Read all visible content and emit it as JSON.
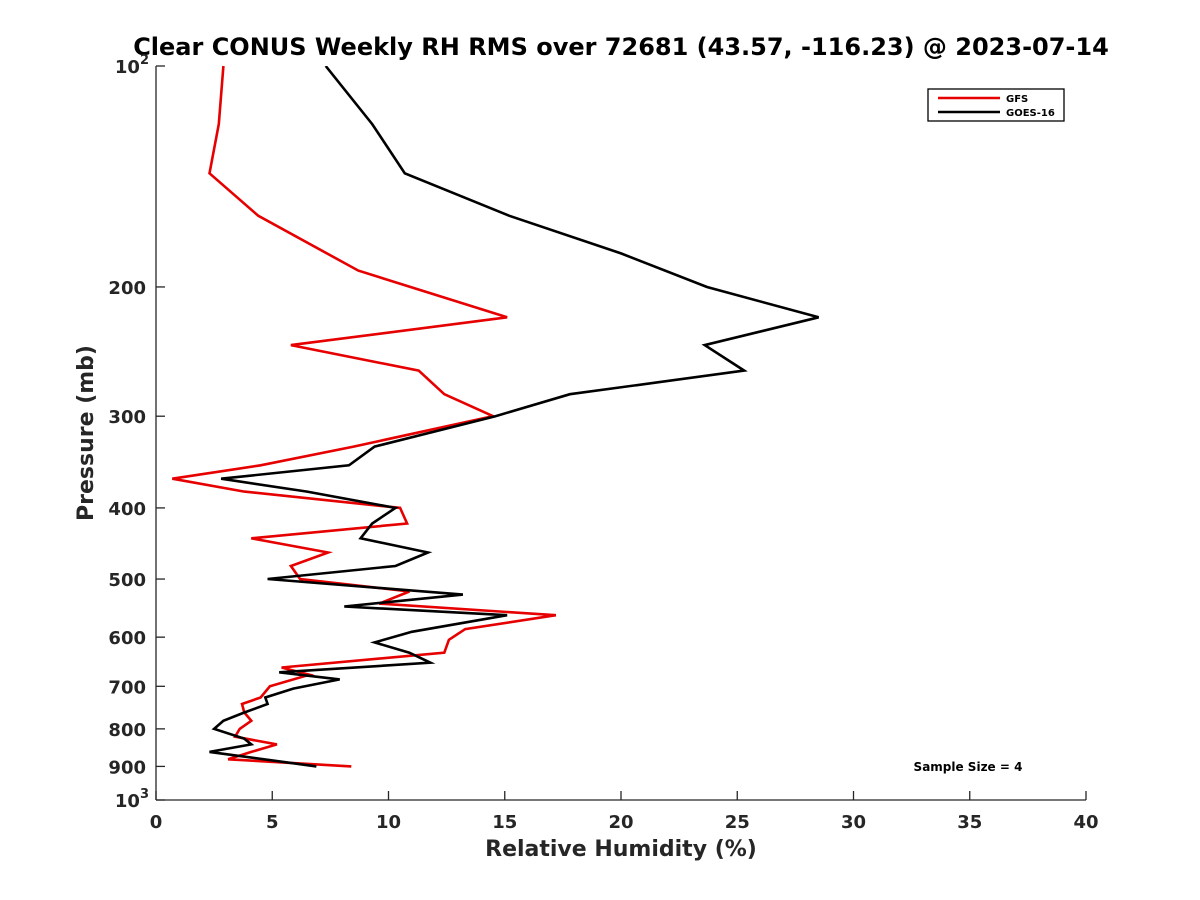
{
  "chart_data": {
    "type": "line",
    "title": "Clear CONUS Weekly RH RMS over 72681 (43.57, -116.23) @ 2023-07-14",
    "xlabel": "Relative Humidity (%)",
    "ylabel": "Pressure (mb)",
    "xlim": [
      0,
      40
    ],
    "ylim": [
      100,
      1000
    ],
    "y_scale": "log",
    "y_reversed": true,
    "grid": false,
    "legend_position": "top-right",
    "x_ticks": [
      "0",
      "5",
      "10",
      "15",
      "20",
      "25",
      "30",
      "35",
      "40"
    ],
    "y_ticks": [
      {
        "value": 100,
        "base": "10",
        "exp": "2"
      },
      {
        "value": 200,
        "label": "200"
      },
      {
        "value": 300,
        "label": "300"
      },
      {
        "value": 400,
        "label": "400"
      },
      {
        "value": 500,
        "label": "500"
      },
      {
        "value": 600,
        "label": "600"
      },
      {
        "value": 700,
        "label": "700"
      },
      {
        "value": 800,
        "label": "800"
      },
      {
        "value": 900,
        "label": "900"
      },
      {
        "value": 1000,
        "base": "10",
        "exp": "3"
      }
    ],
    "series": [
      {
        "name": "GFS",
        "color": "#e60000",
        "points": [
          [
            2.9,
            100
          ],
          [
            2.7,
            120
          ],
          [
            2.3,
            140
          ],
          [
            4.4,
            160
          ],
          [
            8.7,
            190
          ],
          [
            15.1,
            220
          ],
          [
            5.8,
            240
          ],
          [
            11.3,
            260
          ],
          [
            12.4,
            280
          ],
          [
            14.5,
            300
          ],
          [
            8.5,
            330
          ],
          [
            4.5,
            350
          ],
          [
            0.7,
            365
          ],
          [
            3.8,
            380
          ],
          [
            10.5,
            400
          ],
          [
            10.8,
            420
          ],
          [
            4.1,
            440
          ],
          [
            7.4,
            460
          ],
          [
            5.8,
            480
          ],
          [
            6.2,
            500
          ],
          [
            10.9,
            520
          ],
          [
            9.6,
            540
          ],
          [
            17.2,
            560
          ],
          [
            13.3,
            585
          ],
          [
            12.6,
            605
          ],
          [
            12.4,
            630
          ],
          [
            5.4,
            660
          ],
          [
            6.6,
            675
          ],
          [
            4.9,
            700
          ],
          [
            4.5,
            725
          ],
          [
            3.7,
            740
          ],
          [
            3.8,
            760
          ],
          [
            4.1,
            780
          ],
          [
            3.6,
            800
          ],
          [
            3.4,
            820
          ],
          [
            5.2,
            840
          ],
          [
            4.1,
            860
          ],
          [
            3.1,
            880
          ],
          [
            8.4,
            900
          ]
        ]
      },
      {
        "name": "GOES-16",
        "color": "#000000",
        "points": [
          [
            7.3,
            100
          ],
          [
            9.3,
            120
          ],
          [
            10.7,
            140
          ],
          [
            15.2,
            160
          ],
          [
            20.0,
            180
          ],
          [
            23.7,
            200
          ],
          [
            28.5,
            220
          ],
          [
            23.6,
            240
          ],
          [
            25.3,
            260
          ],
          [
            17.8,
            280
          ],
          [
            14.6,
            300
          ],
          [
            9.4,
            330
          ],
          [
            8.3,
            350
          ],
          [
            2.8,
            365
          ],
          [
            6.5,
            380
          ],
          [
            10.3,
            400
          ],
          [
            9.3,
            420
          ],
          [
            8.8,
            440
          ],
          [
            11.7,
            460
          ],
          [
            10.3,
            480
          ],
          [
            4.8,
            500
          ],
          [
            13.2,
            525
          ],
          [
            8.1,
            545
          ],
          [
            15.1,
            560
          ],
          [
            11.0,
            590
          ],
          [
            9.4,
            610
          ],
          [
            10.9,
            630
          ],
          [
            11.8,
            650
          ],
          [
            5.3,
            670
          ],
          [
            7.9,
            685
          ],
          [
            5.9,
            705
          ],
          [
            4.7,
            725
          ],
          [
            4.8,
            740
          ],
          [
            3.8,
            760
          ],
          [
            2.9,
            780
          ],
          [
            2.5,
            800
          ],
          [
            3.8,
            825
          ],
          [
            4.1,
            840
          ],
          [
            2.3,
            860
          ],
          [
            6.9,
            900
          ]
        ]
      }
    ],
    "annotation": "Sample Size = 4"
  }
}
